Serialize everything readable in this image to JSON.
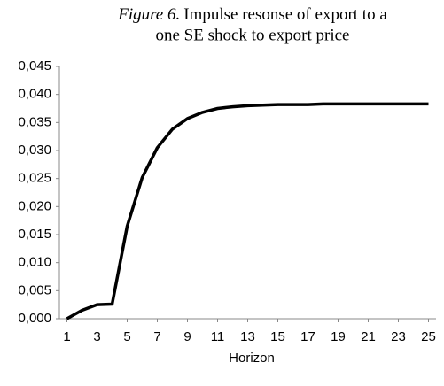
{
  "chart_data": {
    "type": "line",
    "figure_label": "Figure 6.",
    "title_lines": [
      "Impulse resonse of export to a",
      "one SE shock to export price"
    ],
    "x_label": "Horizon",
    "x": [
      1,
      2,
      3,
      4,
      5,
      6,
      7,
      8,
      9,
      10,
      11,
      12,
      13,
      14,
      15,
      16,
      17,
      18,
      19,
      20,
      21,
      22,
      23,
      24,
      25
    ],
    "values": [
      0.0,
      0.0015,
      0.0025,
      0.0026,
      0.0165,
      0.0252,
      0.0305,
      0.0338,
      0.0357,
      0.0368,
      0.0375,
      0.0378,
      0.038,
      0.0381,
      0.0382,
      0.0382,
      0.0382,
      0.0383,
      0.0383,
      0.0383,
      0.0383,
      0.0383,
      0.0383,
      0.0383,
      0.0383
    ],
    "color": "#000000",
    "xlim": [
      0.5,
      25.5
    ],
    "xticks": [
      1,
      3,
      5,
      7,
      9,
      11,
      13,
      15,
      17,
      19,
      21,
      23,
      25
    ],
    "ylim": [
      0,
      0.045
    ],
    "yticks": [
      {
        "value": 0,
        "label": "0,000"
      },
      {
        "value": 0.005,
        "label": "0,005"
      },
      {
        "value": 0.01,
        "label": "0,010"
      },
      {
        "value": 0.015,
        "label": "0,015"
      },
      {
        "value": 0.02,
        "label": "0,020"
      },
      {
        "value": 0.025,
        "label": "0,025"
      },
      {
        "value": 0.03,
        "label": "0,030"
      },
      {
        "value": 0.035,
        "label": "0,035"
      },
      {
        "value": 0.04,
        "label": "0,040"
      },
      {
        "value": 0.045,
        "label": "0,045"
      }
    ],
    "grid": false
  }
}
